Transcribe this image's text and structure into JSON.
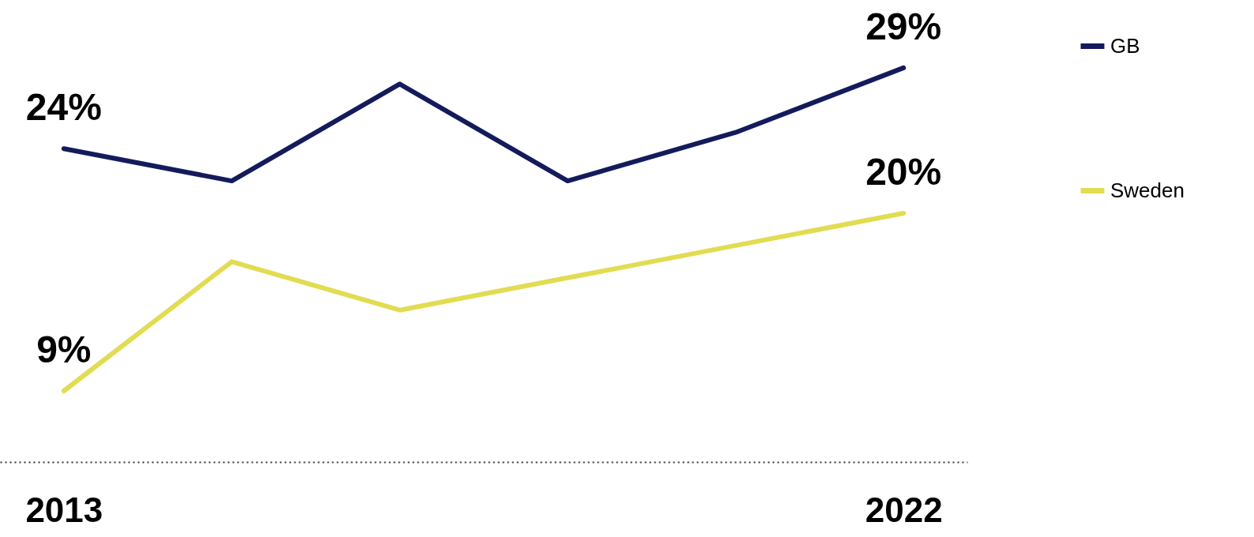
{
  "chart_data": {
    "type": "line",
    "categories": [
      "2013",
      null,
      null,
      null,
      null,
      "2022"
    ],
    "series": [
      {
        "name": "GB",
        "color": "#141b5c",
        "values": [
          24,
          22,
          28,
          22,
          25,
          29
        ],
        "value_labels": [
          "24%",
          null,
          null,
          null,
          null,
          "29%"
        ]
      },
      {
        "name": "Sweden",
        "color": "#e2dc52",
        "values": [
          9,
          17,
          14,
          16,
          18,
          20
        ],
        "value_labels": [
          "9%",
          null,
          null,
          null,
          null,
          "20%"
        ]
      }
    ],
    "legend": "right",
    "grid": false,
    "marker": "none",
    "line_style": "solid"
  }
}
